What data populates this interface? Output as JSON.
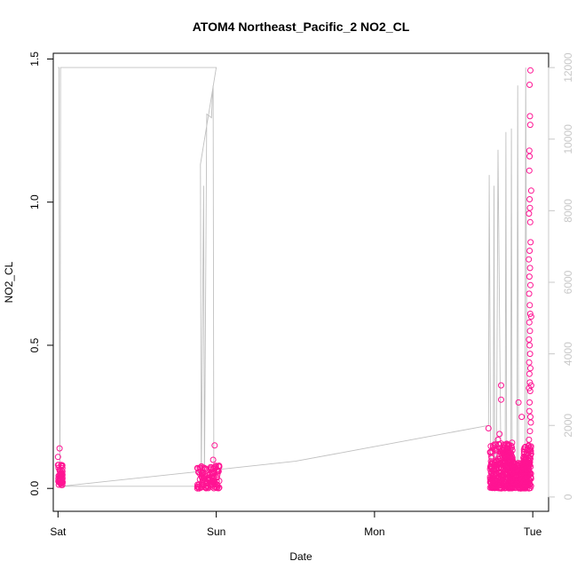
{
  "chart_data": {
    "type": "scatter",
    "title": "ATOM4 Northeast_Pacific_2 NO2_CL",
    "xlabel": "Date",
    "ylabel": "NO2_CL",
    "x_ticks": [
      "Sat",
      "Sun",
      "Mon",
      "Tue"
    ],
    "x_range_days": [
      -0.03,
      3.1
    ],
    "ylim": [
      -0.08,
      1.52
    ],
    "y_ticks": [
      0.0,
      0.5,
      1.0,
      1.5
    ],
    "y_tick_labels": [
      "0.0",
      "0.5",
      "1.0",
      "1.5"
    ],
    "y2_range": [
      -400,
      12400
    ],
    "y2_ticks": [
      0,
      2000,
      4000,
      6000,
      8000,
      10000,
      12000
    ],
    "y2_tick_labels": [
      "0",
      "2000",
      "4000",
      "6000",
      "8000",
      "10000",
      "12000"
    ],
    "colors": {
      "points": "#ff1493",
      "altitude_line": "#c0c0c0",
      "axis_right": "#c8c8c8"
    },
    "series": [
      {
        "style": "points",
        "clusters": [
          {
            "x_start": 0.0,
            "x_end": 0.03,
            "y_min": 0.01,
            "y_max": 0.09,
            "count": 50
          },
          {
            "x_start": 0.88,
            "x_end": 1.02,
            "y_min": 0.0,
            "y_max": 0.08,
            "count": 110
          },
          {
            "x_start": 2.73,
            "x_end": 2.88,
            "y_min": 0.0,
            "y_max": 0.16,
            "count": 320
          },
          {
            "x_start": 2.86,
            "x_end": 2.97,
            "y_min": 0.0,
            "y_max": 0.09,
            "count": 180
          },
          {
            "x_start": 2.94,
            "x_end": 2.99,
            "y_min": 0.0,
            "y_max": 0.15,
            "count": 120
          }
        ],
        "notable_points": [
          {
            "x": 0.01,
            "y": 0.14
          },
          {
            "x": 0.0,
            "y": 0.11
          },
          {
            "x": 0.99,
            "y": 0.15
          },
          {
            "x": 0.98,
            "y": 0.1
          },
          {
            "x": 2.72,
            "y": 0.21
          },
          {
            "x": 2.8,
            "y": 0.36
          },
          {
            "x": 2.8,
            "y": 0.31
          },
          {
            "x": 2.79,
            "y": 0.19
          },
          {
            "x": 2.78,
            "y": 0.17
          },
          {
            "x": 2.82,
            "y": 0.14
          },
          {
            "x": 2.84,
            "y": 0.13
          },
          {
            "x": 2.91,
            "y": 0.3
          },
          {
            "x": 2.93,
            "y": 0.25
          }
        ],
        "spike_points": [
          {
            "x": 2.985,
            "y": 1.46
          },
          {
            "x": 2.98,
            "y": 1.41
          },
          {
            "x": 2.982,
            "y": 1.3
          },
          {
            "x": 2.984,
            "y": 1.27
          },
          {
            "x": 2.978,
            "y": 1.18
          },
          {
            "x": 2.98,
            "y": 1.16
          },
          {
            "x": 2.978,
            "y": 1.11
          },
          {
            "x": 2.99,
            "y": 1.04
          },
          {
            "x": 2.98,
            "y": 1.01
          },
          {
            "x": 2.982,
            "y": 0.98
          },
          {
            "x": 2.976,
            "y": 0.96
          },
          {
            "x": 2.984,
            "y": 0.93
          },
          {
            "x": 2.986,
            "y": 0.86
          },
          {
            "x": 2.98,
            "y": 0.83
          },
          {
            "x": 2.975,
            "y": 0.8
          },
          {
            "x": 2.983,
            "y": 0.77
          },
          {
            "x": 2.979,
            "y": 0.74
          },
          {
            "x": 2.985,
            "y": 0.71
          },
          {
            "x": 2.977,
            "y": 0.68
          },
          {
            "x": 2.981,
            "y": 0.64
          },
          {
            "x": 2.984,
            "y": 0.61
          },
          {
            "x": 2.978,
            "y": 0.58
          },
          {
            "x": 2.982,
            "y": 0.55
          },
          {
            "x": 2.976,
            "y": 0.52
          },
          {
            "x": 2.99,
            "y": 0.6
          },
          {
            "x": 2.98,
            "y": 0.5
          },
          {
            "x": 2.983,
            "y": 0.47
          },
          {
            "x": 2.977,
            "y": 0.44
          },
          {
            "x": 2.985,
            "y": 0.42
          },
          {
            "x": 2.979,
            "y": 0.4
          },
          {
            "x": 2.981,
            "y": 0.37
          },
          {
            "x": 2.976,
            "y": 0.35
          },
          {
            "x": 2.984,
            "y": 0.34
          },
          {
            "x": 2.99,
            "y": 0.36
          },
          {
            "x": 2.98,
            "y": 0.3
          },
          {
            "x": 2.978,
            "y": 0.27
          },
          {
            "x": 2.985,
            "y": 0.25
          },
          {
            "x": 2.982,
            "y": 0.2
          },
          {
            "x": 2.976,
            "y": 0.17
          },
          {
            "x": 2.988,
            "y": 0.23
          },
          {
            "x": 2.974,
            "y": 0.15
          }
        ]
      },
      {
        "style": "line",
        "axis": "right",
        "points": [
          {
            "x": 0.0,
            "y": 12000
          },
          {
            "x": 0.006,
            "y": 12000
          },
          {
            "x": 0.01,
            "y": 3000
          },
          {
            "x": 0.012,
            "y": 600
          },
          {
            "x": 0.014,
            "y": 3000
          },
          {
            "x": 0.016,
            "y": 12000
          },
          {
            "x": 0.03,
            "y": 12000
          },
          {
            "x": 0.5,
            "y": 12000
          },
          {
            "x": 1.0,
            "y": 12000
          },
          {
            "x": 0.9,
            "y": 9300
          },
          {
            "x": 0.905,
            "y": 300
          },
          {
            "x": 0.92,
            "y": 8700
          },
          {
            "x": 0.925,
            "y": 300
          },
          {
            "x": 0.94,
            "y": 10700
          },
          {
            "x": 0.97,
            "y": 10600
          },
          {
            "x": 0.975,
            "y": 11200
          },
          {
            "x": 0.98,
            "y": 11500
          },
          {
            "x": 0.985,
            "y": 400
          },
          {
            "x": 1.0,
            "y": 300
          },
          {
            "x": 0.02,
            "y": 300
          },
          {
            "x": 1.5,
            "y": 1000
          },
          {
            "x": 2.72,
            "y": 2000
          },
          {
            "x": 2.725,
            "y": 9000
          },
          {
            "x": 2.735,
            "y": 300
          },
          {
            "x": 2.75,
            "y": 300
          },
          {
            "x": 2.755,
            "y": 8700
          },
          {
            "x": 2.76,
            "y": 300
          },
          {
            "x": 2.77,
            "y": 400
          },
          {
            "x": 2.78,
            "y": 9700
          },
          {
            "x": 2.8,
            "y": 300
          },
          {
            "x": 2.825,
            "y": 300
          },
          {
            "x": 2.83,
            "y": 10200
          },
          {
            "x": 2.835,
            "y": 300
          },
          {
            "x": 2.86,
            "y": 300
          },
          {
            "x": 2.865,
            "y": 10300
          },
          {
            "x": 2.87,
            "y": 300
          },
          {
            "x": 2.9,
            "y": 300
          },
          {
            "x": 2.905,
            "y": 11500
          },
          {
            "x": 2.91,
            "y": 1000
          },
          {
            "x": 2.95,
            "y": 300
          },
          {
            "x": 2.955,
            "y": 12000
          },
          {
            "x": 2.965,
            "y": 400
          },
          {
            "x": 2.985,
            "y": 400
          }
        ]
      }
    ]
  }
}
